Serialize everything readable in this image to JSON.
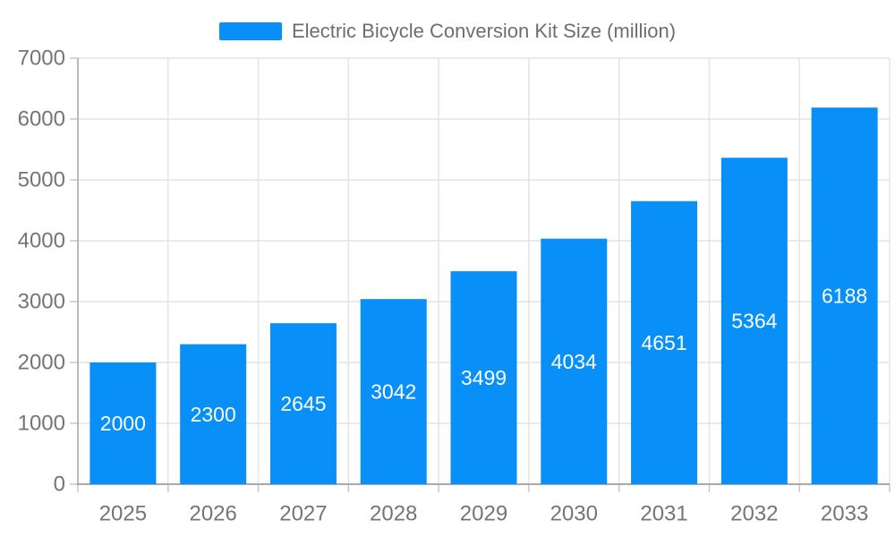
{
  "legend": {
    "label": "Electric Bicycle Conversion Kit Size (million)"
  },
  "colors": {
    "bar": "#0890F8",
    "bar_label_text": "#ffffff",
    "axis_line": "#a9a9a9",
    "grid_line": "#e3e3e3",
    "tick_line": "#c4c4c4",
    "axis_text": "#757575",
    "legend_text": "#6e6e6e",
    "background": "#ffffff"
  },
  "chart_data": {
    "type": "bar",
    "title": "Electric Bicycle Conversion Kit Size (million)",
    "categories": [
      "2025",
      "2026",
      "2027",
      "2028",
      "2029",
      "2030",
      "2031",
      "2032",
      "2033"
    ],
    "values": [
      2000,
      2300,
      2645,
      3042,
      3499,
      4034,
      4651,
      5364,
      6188
    ],
    "xlabel": "",
    "ylabel": "",
    "ylim": [
      0,
      7000
    ],
    "ytick_step": 1000,
    "ytick_labels": [
      "0",
      "1000",
      "2000",
      "3000",
      "4000",
      "5000",
      "6000",
      "7000"
    ],
    "grid": true,
    "legend_position": "top",
    "value_label_position": "inside-center"
  }
}
